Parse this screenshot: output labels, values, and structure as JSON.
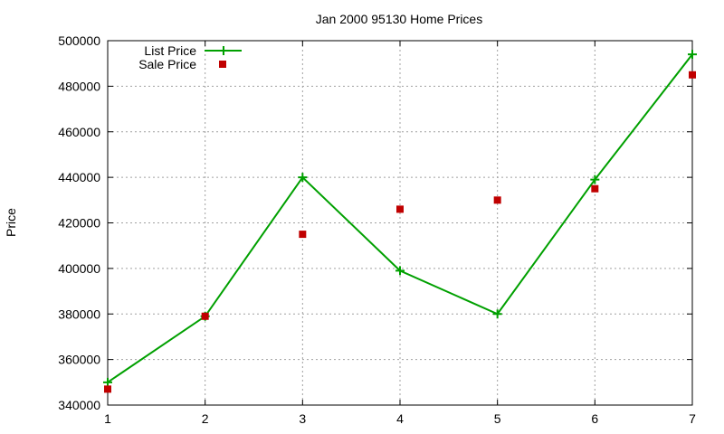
{
  "chart_data": {
    "type": "line",
    "title": "Jan 2000 95130 Home Prices",
    "xlabel": "",
    "ylabel": "Price",
    "xlim": [
      1,
      7
    ],
    "ylim": [
      340000,
      500000
    ],
    "x_ticks": [
      "1",
      "2",
      "3",
      "4",
      "5",
      "6",
      "7"
    ],
    "y_ticks": [
      "340000",
      "360000",
      "380000",
      "400000",
      "420000",
      "440000",
      "460000",
      "480000",
      "500000"
    ],
    "grid": true,
    "legend_position": "top-left",
    "series": [
      {
        "name": "List Price",
        "style": "line-with-plus-markers",
        "color": "#00a000",
        "x": [
          1,
          2,
          3,
          4,
          5,
          6,
          7
        ],
        "y": [
          350000,
          379000,
          440000,
          399000,
          380000,
          439000,
          494000
        ]
      },
      {
        "name": "Sale Price",
        "style": "square-markers",
        "color": "#c00000",
        "x": [
          1,
          2,
          3,
          4,
          5,
          6,
          7
        ],
        "y": [
          347000,
          379000,
          415000,
          426000,
          430000,
          435000,
          485000
        ]
      }
    ]
  }
}
